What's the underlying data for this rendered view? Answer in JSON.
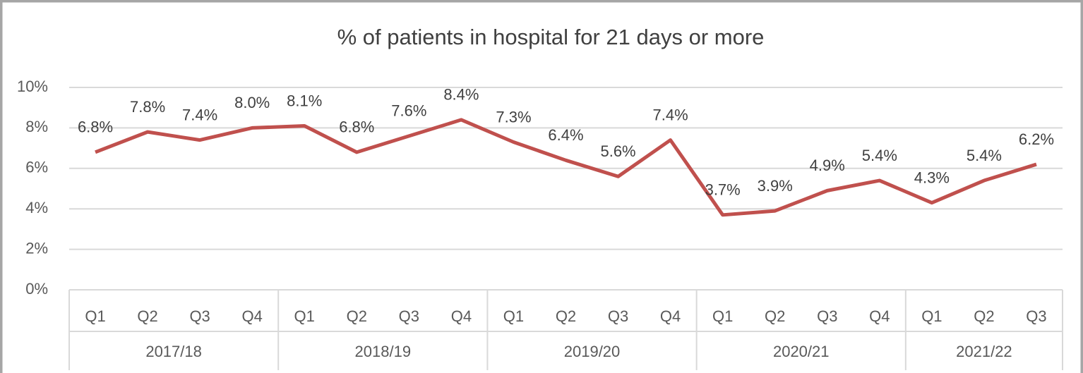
{
  "chart_data": {
    "type": "line",
    "title": "% of patients in hospital for 21 days or more",
    "groups": [
      {
        "name": "2017/18",
        "categories": [
          "Q1",
          "Q2",
          "Q3",
          "Q4"
        ]
      },
      {
        "name": "2018/19",
        "categories": [
          "Q1",
          "Q2",
          "Q3",
          "Q4"
        ]
      },
      {
        "name": "2019/20",
        "categories": [
          "Q1",
          "Q2",
          "Q3",
          "Q4"
        ]
      },
      {
        "name": "2020/21",
        "categories": [
          "Q1",
          "Q2",
          "Q3",
          "Q4"
        ]
      },
      {
        "name": "2021/22",
        "categories": [
          "Q1",
          "Q2",
          "Q3"
        ]
      }
    ],
    "values": [
      6.8,
      7.8,
      7.4,
      8.0,
      8.1,
      6.8,
      7.6,
      8.4,
      7.3,
      6.4,
      5.6,
      7.4,
      3.7,
      3.9,
      4.9,
      5.4,
      4.3,
      5.4,
      6.2
    ],
    "value_labels": [
      "6.8%",
      "7.8%",
      "7.4%",
      "8.0%",
      "8.1%",
      "6.8%",
      "7.6%",
      "8.4%",
      "7.3%",
      "6.4%",
      "5.6%",
      "7.4%",
      "3.7%",
      "3.9%",
      "4.9%",
      "5.4%",
      "4.3%",
      "5.4%",
      "6.2%"
    ],
    "color": "#c0504d",
    "ylim": [
      0,
      10
    ],
    "yticks": [
      {
        "value": 0,
        "label": "0%"
      },
      {
        "value": 2,
        "label": "2%"
      },
      {
        "value": 4,
        "label": "4%"
      },
      {
        "value": 6,
        "label": "6%"
      },
      {
        "value": 8,
        "label": "8%"
      },
      {
        "value": 10,
        "label": "10%"
      }
    ],
    "grid": true
  }
}
